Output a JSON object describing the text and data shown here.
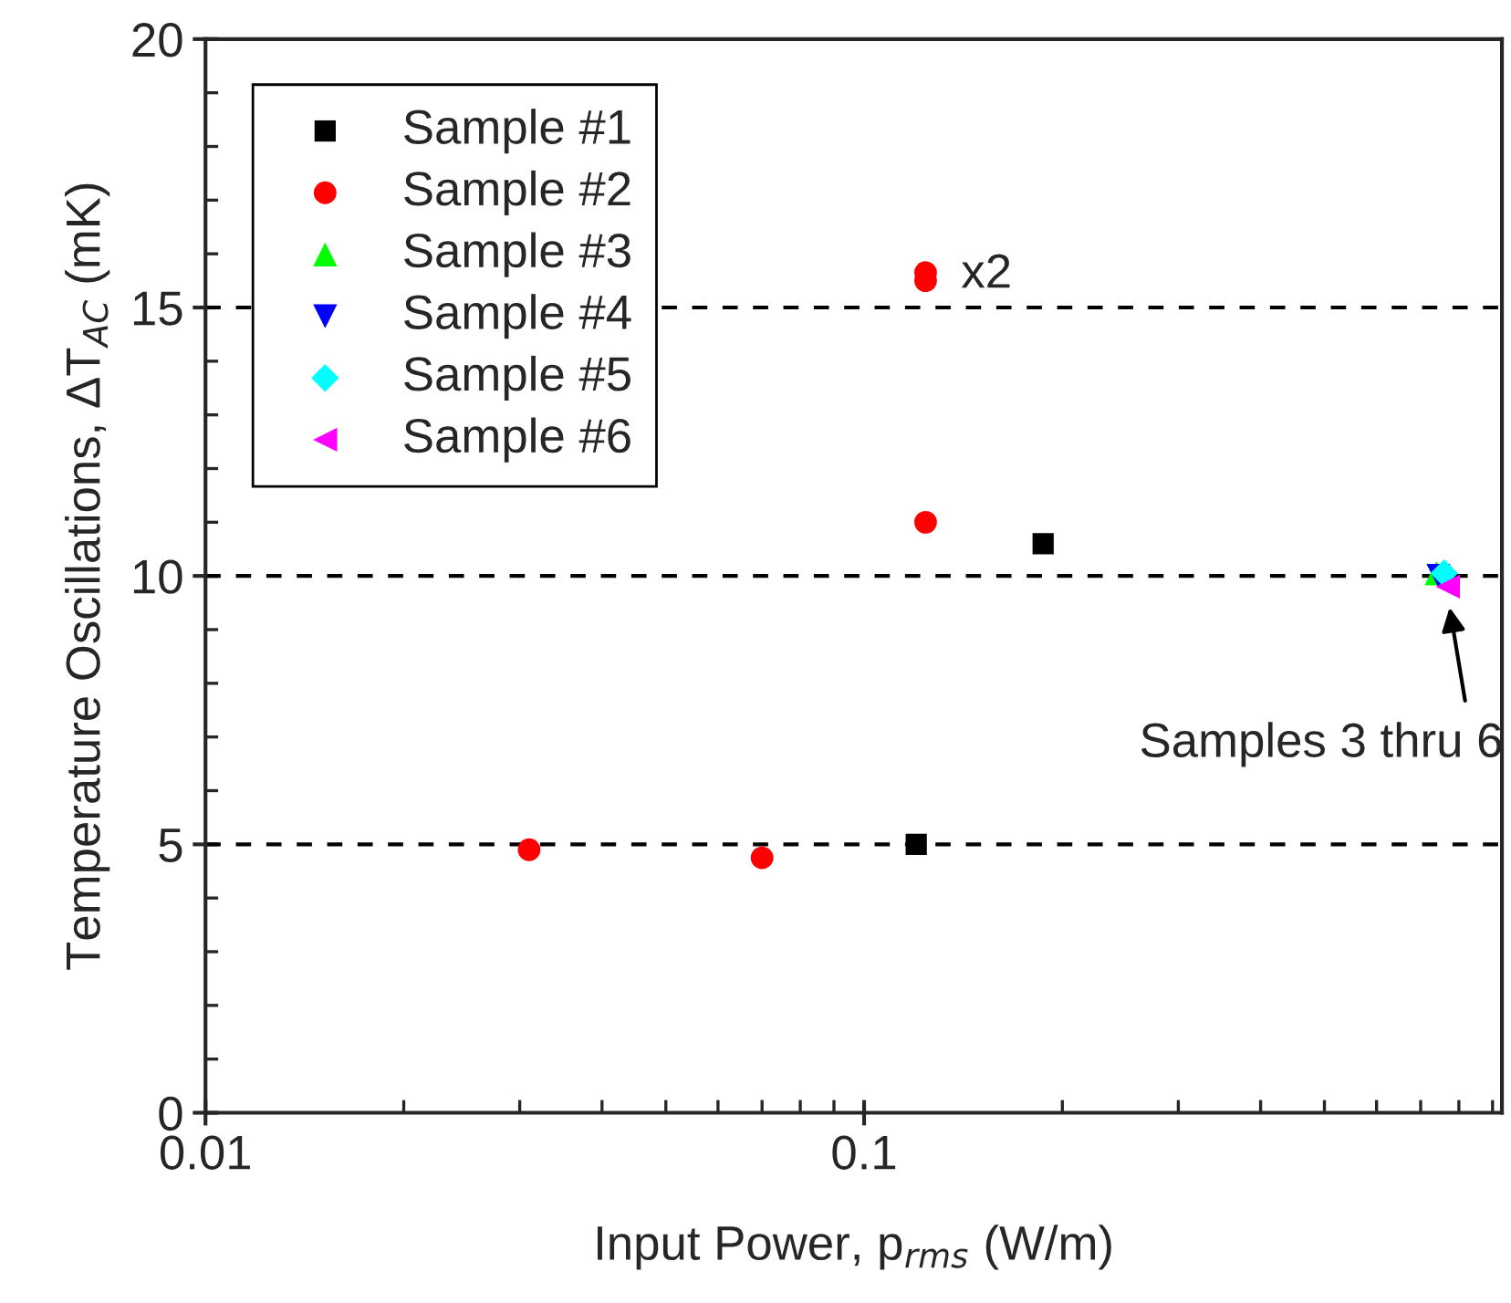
{
  "chart_data": {
    "type": "scatter",
    "xlabel": "Input Power, p$_{rms}$ (W/m)",
    "ylabel": "Temperature Oscillations, ΔT$_{AC}$ (mK)",
    "log": "x",
    "xlim": [
      0.01,
      0.93
    ],
    "xticks": [
      0.01,
      0.1
    ],
    "ylim": [
      0,
      20
    ],
    "yticks": [
      0,
      5,
      10,
      15,
      20
    ],
    "grid": false,
    "legend": "top left",
    "series": [
      {
        "name": "Sample #1",
        "color": "#000000",
        "marker": "square",
        "x": [
          0.12,
          0.187
        ],
        "values": [
          5.0,
          10.6
        ]
      },
      {
        "name": "Sample #2",
        "color": "#ff0000",
        "marker": "circle",
        "x": [
          0.031,
          0.07,
          0.124,
          0.124,
          0.124
        ],
        "values": [
          4.9,
          4.75,
          11.0,
          15.5,
          15.65
        ]
      },
      {
        "name": "Sample #3",
        "color": "#00ff00",
        "marker": "triangle",
        "x": [
          0.74
        ],
        "values": [
          10.05
        ]
      },
      {
        "name": "Sample #4",
        "color": "#0000ff",
        "marker": "triangle_down",
        "x": [
          0.745
        ],
        "values": [
          10.0
        ]
      },
      {
        "name": "Sample #5",
        "color": "#00ffff",
        "marker": "diamond",
        "x": [
          0.76
        ],
        "values": [
          10.05
        ]
      },
      {
        "name": "Sample #6",
        "color": "#ff00ff",
        "marker": "triangle_left",
        "x": [
          0.77
        ],
        "values": [
          9.8
        ]
      }
    ],
    "ref_lines": [
      {
        "axis": "y",
        "value": 5,
        "color": "#000000",
        "line_style": "dashed"
      },
      {
        "axis": "y",
        "value": 10,
        "color": "#000000",
        "line_style": "dashed"
      },
      {
        "axis": "y",
        "value": 15,
        "color": "#000000",
        "line_style": "dashed"
      }
    ],
    "annotations": [
      {
        "text": "x2",
        "x": 0.124,
        "y": 15.6
      },
      {
        "text": "Samples 3 thru 6",
        "x": 0.77,
        "y": 9.6
      }
    ]
  }
}
